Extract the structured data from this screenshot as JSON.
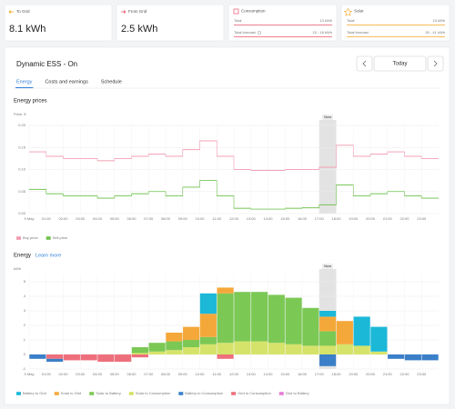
{
  "cards": [
    {
      "label": "To Grid",
      "value": "8.1 kWh"
    },
    {
      "label": "From Grid",
      "value": "2.5 kWh"
    },
    {
      "label": "Consumption",
      "rows": [
        {
          "label": "Total",
          "value": "13 kWh"
        },
        {
          "label": "Total forecast",
          "value": "15 - 18 kWh"
        }
      ]
    },
    {
      "label": "Solar",
      "rows": [
        {
          "label": "Total",
          "value": "13 kWh"
        },
        {
          "label": "Total forecast",
          "value": "30 - 41 kWh"
        }
      ]
    }
  ],
  "panel": {
    "title": "Dynamic ESS - On",
    "nav": "Today",
    "tabs": [
      "Energy",
      "Costs and earnings",
      "Schedule"
    ],
    "active_tab": 0
  },
  "chart_data": [
    {
      "type": "line",
      "title": "Energy prices",
      "y_label": "Price: €",
      "annotation": "Now",
      "now": [
        17,
        18
      ],
      "x": [
        0,
        1,
        2,
        3,
        4,
        5,
        6,
        7,
        8,
        9,
        10,
        11,
        12,
        13,
        14,
        15,
        16,
        17,
        18,
        19,
        20,
        21,
        22,
        23
      ],
      "xlim": [
        0,
        24
      ],
      "xticks": [
        {
          "value": 0,
          "label": "9 May"
        },
        {
          "value": 1,
          "label": "01:00"
        },
        {
          "value": 2,
          "label": "02:00"
        },
        {
          "value": 3,
          "label": "03:00"
        },
        {
          "value": 4,
          "label": "04:00"
        },
        {
          "value": 5,
          "label": "05:00"
        },
        {
          "value": 6,
          "label": "06:00"
        },
        {
          "value": 7,
          "label": "07:00"
        },
        {
          "value": 8,
          "label": "08:00"
        },
        {
          "value": 9,
          "label": "09:00"
        },
        {
          "value": 10,
          "label": "10:00"
        },
        {
          "value": 11,
          "label": "11:00"
        },
        {
          "value": 12,
          "label": "12:00"
        },
        {
          "value": 13,
          "label": "13:00"
        },
        {
          "value": 14,
          "label": "14:00"
        },
        {
          "value": 15,
          "label": "15:00"
        },
        {
          "value": 16,
          "label": "16:00"
        },
        {
          "value": 17,
          "label": "17:00"
        },
        {
          "value": 18,
          "label": "18:00"
        },
        {
          "value": 19,
          "label": "19:00"
        },
        {
          "value": 20,
          "label": "20:00"
        },
        {
          "value": 21,
          "label": "21:00"
        },
        {
          "value": 22,
          "label": "22:00"
        },
        {
          "value": 23,
          "label": "23:00"
        }
      ],
      "ylim": [
        0,
        0.2
      ],
      "yticks": [
        {
          "value": 0,
          "label": "0.00"
        },
        0.05,
        {
          "value": 0.1,
          "label": "0.10"
        },
        0.15,
        {
          "value": 0.2,
          "label": "0.20"
        }
      ],
      "grid": true,
      "series": [
        {
          "name": "Buy price",
          "color": "#f29bb0",
          "values": [
            0.14,
            0.13,
            0.125,
            0.125,
            0.12,
            0.125,
            0.13,
            0.135,
            0.13,
            0.145,
            0.165,
            0.13,
            0.1,
            0.098,
            0.098,
            0.1,
            0.1,
            0.105,
            0.155,
            0.13,
            0.135,
            0.14,
            0.13,
            0.125
          ]
        },
        {
          "name": "Sell price",
          "color": "#6dc14c",
          "values": [
            0.055,
            0.045,
            0.04,
            0.04,
            0.035,
            0.04,
            0.045,
            0.05,
            0.04,
            0.06,
            0.075,
            0.04,
            0.012,
            0.01,
            0.01,
            0.012,
            0.013,
            0.02,
            0.065,
            0.04,
            0.045,
            0.05,
            0.04,
            0.035
          ]
        }
      ]
    },
    {
      "type": "bar",
      "stacked": true,
      "title": "Energy",
      "link": "Learn more",
      "y_label": "kWh",
      "annotation": "Now",
      "now": [
        17,
        18
      ],
      "x": [
        0,
        1,
        2,
        3,
        4,
        5,
        6,
        7,
        8,
        9,
        10,
        11,
        12,
        13,
        14,
        15,
        16,
        17,
        18,
        19,
        20,
        21,
        22,
        23
      ],
      "xlim": [
        0,
        24
      ],
      "xticks": [
        {
          "value": 0,
          "label": "9 May"
        },
        {
          "value": 1,
          "label": "01:00"
        },
        {
          "value": 2,
          "label": "02:00"
        },
        {
          "value": 3,
          "label": "03:00"
        },
        {
          "value": 4,
          "label": "04:00"
        },
        {
          "value": 5,
          "label": "05:00"
        },
        {
          "value": 6,
          "label": "06:00"
        },
        {
          "value": 7,
          "label": "07:00"
        },
        {
          "value": 8,
          "label": "08:00"
        },
        {
          "value": 9,
          "label": "09:00"
        },
        {
          "value": 10,
          "label": "10:00"
        },
        {
          "value": 11,
          "label": "11:00"
        },
        {
          "value": 12,
          "label": "12:00"
        },
        {
          "value": 13,
          "label": "13:00"
        },
        {
          "value": 14,
          "label": "14:00"
        },
        {
          "value": 15,
          "label": "15:00"
        },
        {
          "value": 16,
          "label": "16:00"
        },
        {
          "value": 17,
          "label": "17:00"
        },
        {
          "value": 18,
          "label": "18:00"
        },
        {
          "value": 19,
          "label": "19:00"
        },
        {
          "value": 20,
          "label": "20:00"
        },
        {
          "value": 21,
          "label": "21:00"
        },
        {
          "value": 22,
          "label": "22:00"
        },
        {
          "value": 23,
          "label": "23:00"
        }
      ],
      "ylim": [
        -1,
        5.5
      ],
      "yticks": [
        -1,
        0,
        1,
        2,
        3,
        4,
        5
      ],
      "grid": true,
      "series": [
        {
          "name": "Battery to Grid",
          "color": "#1bb8d8",
          "values": [
            0,
            0,
            0,
            0,
            0,
            0,
            0,
            0,
            0,
            0,
            1.4,
            0,
            0,
            0,
            0,
            0,
            0,
            0.4,
            0,
            2.0,
            1.7,
            0,
            0,
            0
          ]
        },
        {
          "name": "Solar to Grid",
          "color": "#f5a83a",
          "values": [
            0,
            0,
            0,
            0,
            0,
            0,
            0,
            0,
            0.6,
            0.9,
            1.6,
            0.4,
            0,
            0,
            0,
            0,
            0,
            1.0,
            1.6,
            0,
            0,
            0,
            0,
            0
          ]
        },
        {
          "name": "Solar to Battery",
          "color": "#7cc855",
          "values": [
            0,
            0,
            0,
            0,
            0,
            0,
            0.4,
            0.6,
            0.6,
            0.5,
            0.5,
            3.4,
            3.4,
            3.4,
            3.3,
            3.2,
            2.6,
            1.0,
            0,
            0,
            0,
            0,
            0,
            0
          ]
        },
        {
          "name": "Solar to Consumption",
          "color": "#d6e36a",
          "values": [
            0,
            0,
            0,
            0,
            0,
            0,
            0.1,
            0.2,
            0.3,
            0.5,
            0.7,
            0.8,
            0.9,
            0.9,
            0.8,
            0.7,
            0.6,
            0.6,
            0.7,
            0.6,
            0.2,
            0,
            0,
            0
          ]
        },
        {
          "name": "Battery to Consumption",
          "color": "#3a7fc8",
          "values": [
            -0.3,
            -0.2,
            0,
            0,
            0,
            0,
            0,
            0,
            0,
            0,
            0,
            0,
            0,
            0,
            0,
            0,
            0,
            -0.8,
            0,
            0,
            0,
            -0.3,
            -0.4,
            -0.4
          ]
        },
        {
          "name": "Grid to Consumption",
          "color": "#ee6f7c",
          "values": [
            0,
            -0.3,
            -0.4,
            -0.4,
            -0.5,
            -0.5,
            -0.2,
            0,
            0,
            0,
            0,
            -0.3,
            0,
            0,
            0,
            0,
            0,
            0,
            0,
            0,
            0,
            0,
            0,
            0
          ]
        },
        {
          "name": "Grid to Battery",
          "color": "#e57ed8",
          "values": [
            0,
            0,
            0,
            0,
            0,
            0,
            0,
            0,
            0,
            0,
            0,
            0,
            0,
            0,
            0,
            0,
            0,
            0,
            0,
            0,
            0,
            0,
            0,
            0
          ]
        }
      ]
    }
  ]
}
